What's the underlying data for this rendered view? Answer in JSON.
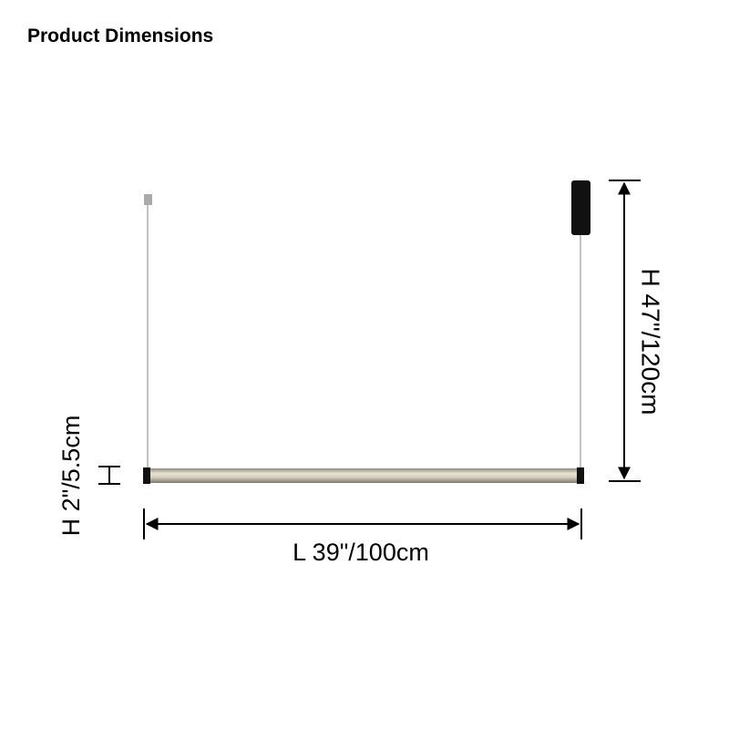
{
  "header": {
    "title": "Product Dimensions"
  },
  "dimensions": {
    "height": "H 47\"/120cm",
    "length": "L 39\"/100cm",
    "tube_height": "H 2\"/5.5cm"
  }
}
